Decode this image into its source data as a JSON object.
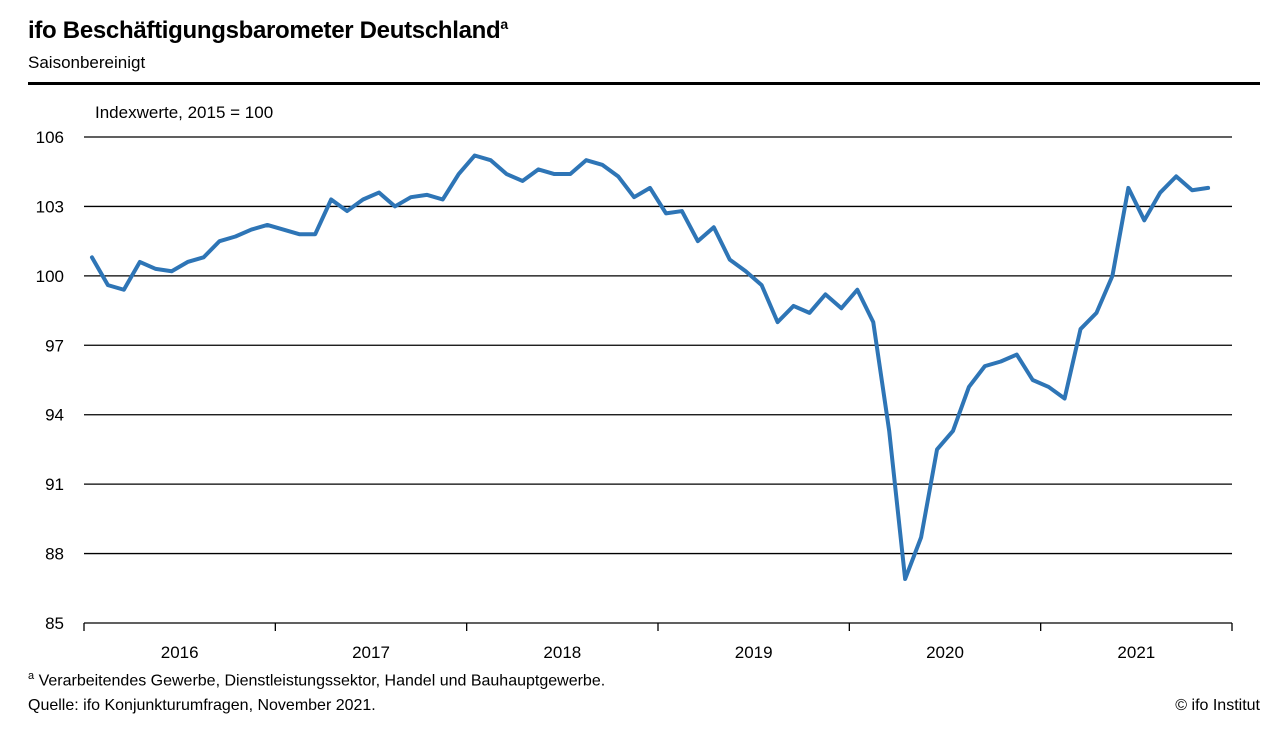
{
  "chart_data": {
    "type": "line",
    "title": "ifo Beschäftigungsbarometer Deutschland",
    "title_superscript": "a",
    "subtitle": "Saisonbereinigt",
    "ylabel": "Indexwerte, 2015 = 100",
    "xlabel": "",
    "ylim": [
      85,
      106
    ],
    "yticks": [
      85,
      88,
      91,
      94,
      97,
      100,
      103,
      106
    ],
    "xticks": [
      "2016",
      "2017",
      "2018",
      "2019",
      "2020",
      "2021"
    ],
    "x_range": [
      "2016-01",
      "2021-12"
    ],
    "grid": true,
    "line_color": "#2e75b6",
    "x": [
      "2016-01",
      "2016-02",
      "2016-03",
      "2016-04",
      "2016-05",
      "2016-06",
      "2016-07",
      "2016-08",
      "2016-09",
      "2016-10",
      "2016-11",
      "2016-12",
      "2017-01",
      "2017-02",
      "2017-03",
      "2017-04",
      "2017-05",
      "2017-06",
      "2017-07",
      "2017-08",
      "2017-09",
      "2017-10",
      "2017-11",
      "2017-12",
      "2018-01",
      "2018-02",
      "2018-03",
      "2018-04",
      "2018-05",
      "2018-06",
      "2018-07",
      "2018-08",
      "2018-09",
      "2018-10",
      "2018-11",
      "2018-12",
      "2019-01",
      "2019-02",
      "2019-03",
      "2019-04",
      "2019-05",
      "2019-06",
      "2019-07",
      "2019-08",
      "2019-09",
      "2019-10",
      "2019-11",
      "2019-12",
      "2020-01",
      "2020-02",
      "2020-03",
      "2020-04",
      "2020-05",
      "2020-06",
      "2020-07",
      "2020-08",
      "2020-09",
      "2020-10",
      "2020-11",
      "2020-12",
      "2021-01",
      "2021-02",
      "2021-03",
      "2021-04",
      "2021-05",
      "2021-06",
      "2021-07",
      "2021-08",
      "2021-09",
      "2021-10",
      "2021-11"
    ],
    "values": [
      100.8,
      99.6,
      99.4,
      100.6,
      100.3,
      100.2,
      100.6,
      100.8,
      101.5,
      101.7,
      102.0,
      102.2,
      102.0,
      101.8,
      101.8,
      103.3,
      102.8,
      103.3,
      103.6,
      103.0,
      103.4,
      103.5,
      103.3,
      104.4,
      105.2,
      105.0,
      104.4,
      104.1,
      104.6,
      104.4,
      104.4,
      105.0,
      104.8,
      104.3,
      103.4,
      103.8,
      102.7,
      102.8,
      101.5,
      102.1,
      100.7,
      100.2,
      99.6,
      98.0,
      98.7,
      98.4,
      99.2,
      98.6,
      99.4,
      98.0,
      93.3,
      86.9,
      88.7,
      92.5,
      93.3,
      95.2,
      96.1,
      96.3,
      96.6,
      95.5,
      95.2,
      94.7,
      97.7,
      98.4,
      100.0,
      103.8,
      102.4,
      103.6,
      104.3,
      103.7,
      103.8
    ]
  },
  "footnote": "Verarbeitendes Gewerbe, Dienstleistungssektor, Handel und Bauhauptgewerbe.",
  "footnote_marker": "a",
  "source": "Quelle: ifo Konjunkturumfragen, November 2021.",
  "copyright": "© ifo Institut"
}
